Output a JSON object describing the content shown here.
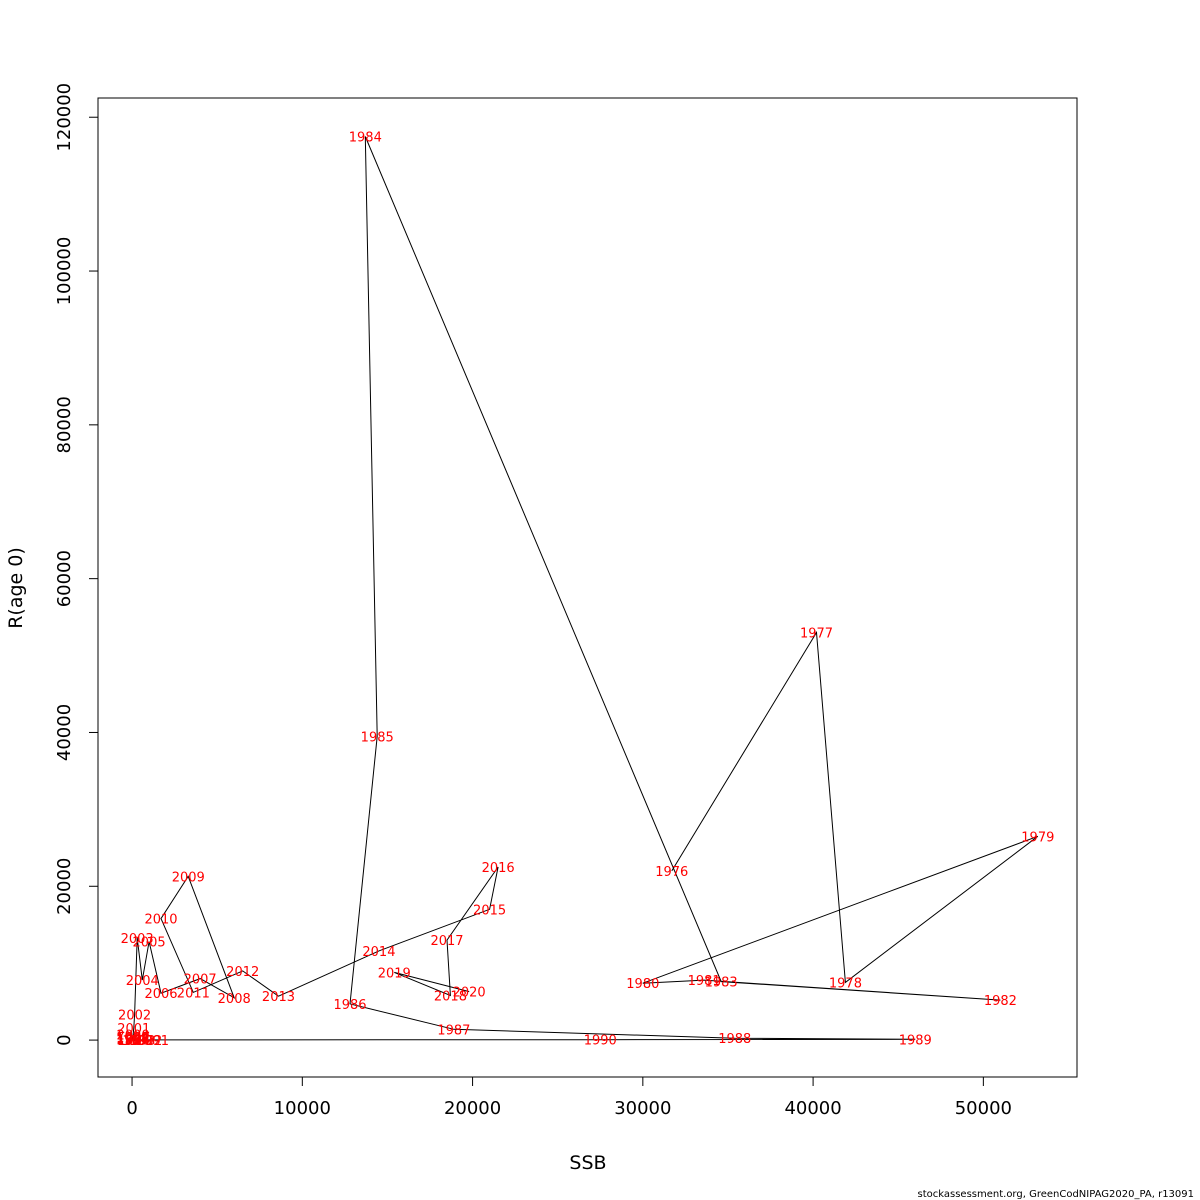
{
  "chart_data": {
    "type": "line",
    "xlabel": "SSB",
    "ylabel": "R(age 0)",
    "xlim": [
      -2000,
      55500
    ],
    "ylim": [
      -4800,
      122500
    ],
    "xticks": [
      0,
      10000,
      20000,
      30000,
      40000,
      50000
    ],
    "xtick_labels": [
      "0",
      "10000",
      "20000",
      "30000",
      "40000",
      "50000"
    ],
    "yticks": [
      0,
      20000,
      40000,
      60000,
      80000,
      100000,
      120000
    ],
    "ytick_labels": [
      "0",
      "20000",
      "40000",
      "60000",
      "80000",
      "100000",
      "120000"
    ],
    "grid": false,
    "line_color": "#000000",
    "label_color": "#ff0000",
    "points": [
      {
        "year": "1976",
        "x": 31700,
        "y": 22000
      },
      {
        "year": "1977",
        "x": 40200,
        "y": 53000
      },
      {
        "year": "1978",
        "x": 41900,
        "y": 7500
      },
      {
        "year": "1979",
        "x": 53200,
        "y": 26500
      },
      {
        "year": "1980",
        "x": 30000,
        "y": 7400
      },
      {
        "year": "1981",
        "x": 33600,
        "y": 7800
      },
      {
        "year": "1982",
        "x": 51000,
        "y": 5200
      },
      {
        "year": "1983",
        "x": 34600,
        "y": 7600
      },
      {
        "year": "1984",
        "x": 13700,
        "y": 117500
      },
      {
        "year": "1985",
        "x": 14400,
        "y": 39500
      },
      {
        "year": "1986",
        "x": 12800,
        "y": 4700
      },
      {
        "year": "1987",
        "x": 18900,
        "y": 1400
      },
      {
        "year": "1988",
        "x": 35400,
        "y": 250
      },
      {
        "year": "1989",
        "x": 46000,
        "y": 100
      },
      {
        "year": "1990",
        "x": 27500,
        "y": 50
      },
      {
        "year": "1991",
        "x": 1200,
        "y": 30
      },
      {
        "year": "1992",
        "x": 800,
        "y": 20
      },
      {
        "year": "1993",
        "x": 400,
        "y": 20
      },
      {
        "year": "1994",
        "x": 100,
        "y": 30
      },
      {
        "year": "1995",
        "x": 50,
        "y": 50
      },
      {
        "year": "1996",
        "x": 40,
        "y": 100
      },
      {
        "year": "1997",
        "x": 30,
        "y": 150
      },
      {
        "year": "1998",
        "x": 30,
        "y": 250
      },
      {
        "year": "1999",
        "x": 40,
        "y": 400
      },
      {
        "year": "2000",
        "x": 60,
        "y": 700
      },
      {
        "year": "2001",
        "x": 100,
        "y": 1600
      },
      {
        "year": "2002",
        "x": 150,
        "y": 3300
      },
      {
        "year": "2003",
        "x": 300,
        "y": 13300
      },
      {
        "year": "2004",
        "x": 600,
        "y": 7800
      },
      {
        "year": "2005",
        "x": 1000,
        "y": 12800
      },
      {
        "year": "2006",
        "x": 1700,
        "y": 6100
      },
      {
        "year": "2007",
        "x": 4000,
        "y": 8000
      },
      {
        "year": "2008",
        "x": 6000,
        "y": 5500
      },
      {
        "year": "2009",
        "x": 3300,
        "y": 21300
      },
      {
        "year": "2010",
        "x": 1700,
        "y": 15800
      },
      {
        "year": "2011",
        "x": 3600,
        "y": 6200
      },
      {
        "year": "2012",
        "x": 6500,
        "y": 9000
      },
      {
        "year": "2013",
        "x": 8600,
        "y": 5700
      },
      {
        "year": "2014",
        "x": 14500,
        "y": 11600
      },
      {
        "year": "2015",
        "x": 21000,
        "y": 17000
      },
      {
        "year": "2016",
        "x": 21500,
        "y": 22500
      },
      {
        "year": "2017",
        "x": 18500,
        "y": 13000
      },
      {
        "year": "2018",
        "x": 18700,
        "y": 5800
      },
      {
        "year": "2019",
        "x": 15400,
        "y": 8800
      },
      {
        "year": "2020",
        "x": 19800,
        "y": 6300
      }
    ]
  },
  "footer": "stockassessment.org, GreenCodNIPAG2020_PA, r13091"
}
